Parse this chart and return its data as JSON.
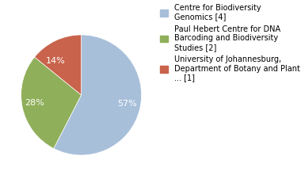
{
  "slices": [
    57,
    28,
    14
  ],
  "colors": [
    "#a8bfda",
    "#8faf5a",
    "#c9634c"
  ],
  "labels": [
    "57%",
    "28%",
    "14%"
  ],
  "legend_labels": [
    "Centre for Biodiversity\nGenomics [4]",
    "Paul Hebert Centre for DNA\nBarcoding and Biodiversity\nStudies [2]",
    "University of Johannesburg,\nDepartment of Botany and Plant\n... [1]"
  ],
  "startangle": 90,
  "legend_fontsize": 7,
  "pct_fontsize": 8,
  "background_color": "#ffffff"
}
